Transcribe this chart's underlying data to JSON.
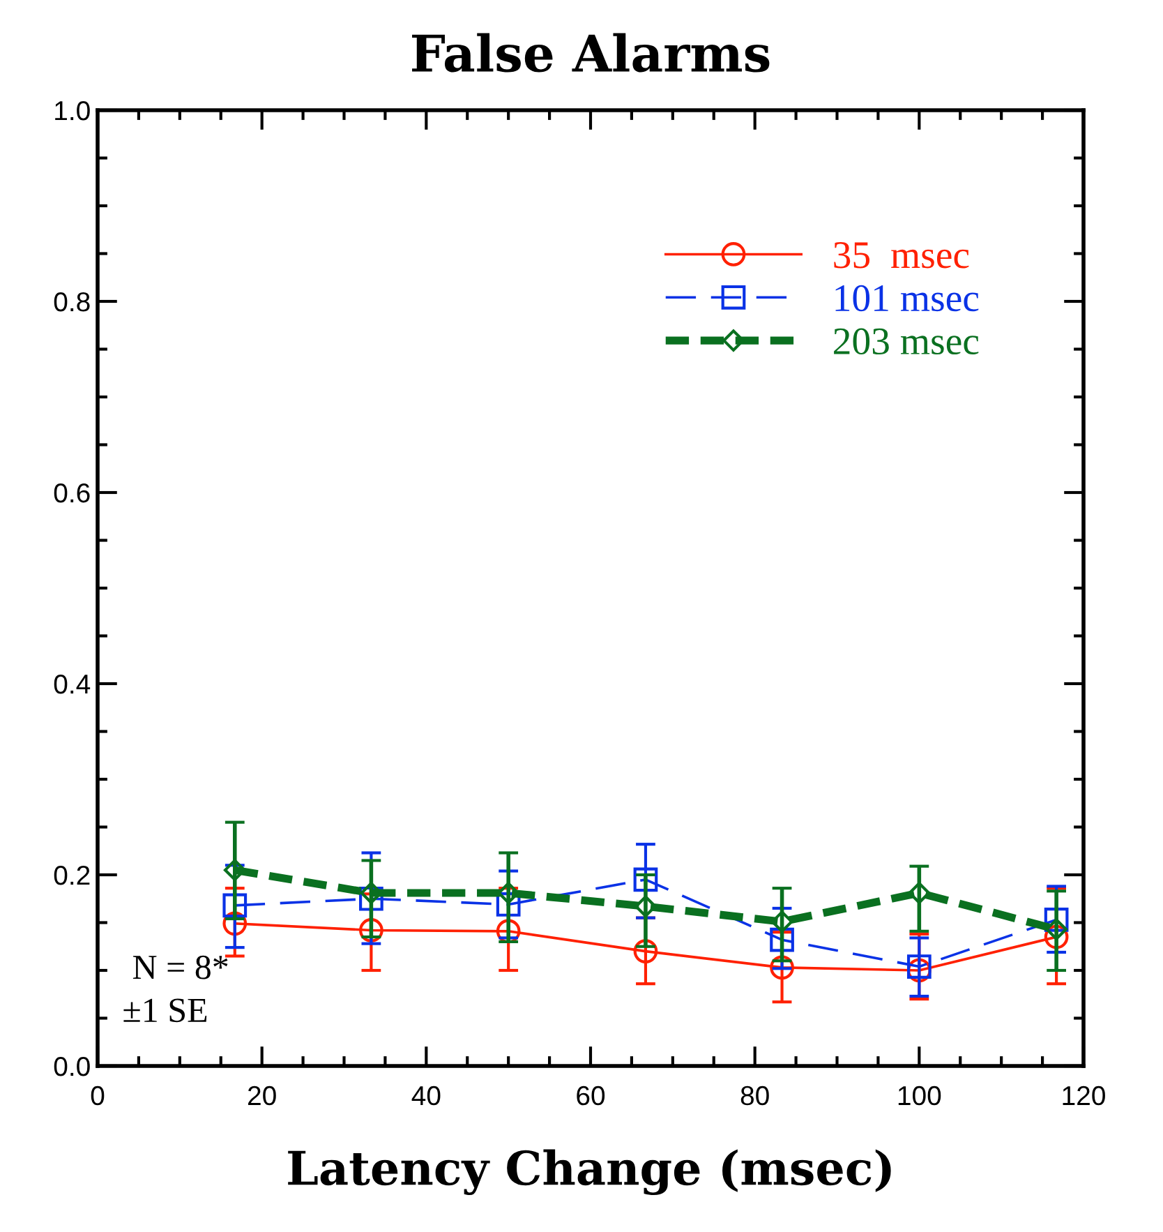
{
  "chart_data": {
    "type": "line",
    "title": "False Alarms",
    "xlabel": "Latency Change (msec)",
    "x": [
      16.7,
      33.3,
      50,
      66.7,
      83.3,
      100,
      116.7
    ],
    "xlim": [
      0,
      120
    ],
    "xticks": [
      0,
      20,
      40,
      60,
      80,
      100,
      120
    ],
    "ylim": [
      0,
      1
    ],
    "yticks": [
      {
        "value": 0,
        "label": "0.0"
      },
      0.2,
      0.4,
      0.6,
      0.8,
      {
        "value": 1,
        "label": "1.0"
      }
    ],
    "grid": false,
    "legend": "top right",
    "series": [
      {
        "name": "35  msec",
        "color": "#ff2000",
        "marker": "circle",
        "line_style": "solid",
        "values": [
          0.149,
          0.142,
          0.141,
          0.12,
          0.103,
          0.1,
          0.135
        ],
        "errors": [
          [
            0.115,
            0.186
          ],
          [
            0.1,
            0.18
          ],
          [
            0.1,
            0.186
          ],
          [
            0.086,
            0.155
          ],
          [
            0.067,
            0.14
          ],
          [
            0.07,
            0.138
          ],
          [
            0.086,
            0.186
          ]
        ]
      },
      {
        "name": "101 msec",
        "color": "#0a32e6",
        "marker": "square",
        "line_style": "dashed",
        "values": [
          0.168,
          0.175,
          0.169,
          0.195,
          0.132,
          0.104,
          0.153
        ],
        "errors": [
          [
            0.124,
            0.21
          ],
          [
            0.128,
            0.223
          ],
          [
            0.134,
            0.204
          ],
          [
            0.155,
            0.232
          ],
          [
            0.102,
            0.165
          ],
          [
            0.073,
            0.134
          ],
          [
            0.119,
            0.188
          ]
        ]
      },
      {
        "name": "203 msec",
        "color": "#0a7020",
        "marker": "diamond",
        "line_style": "dashed",
        "values": [
          0.205,
          0.181,
          0.181,
          0.167,
          0.151,
          0.181,
          0.143
        ],
        "errors": [
          [
            0.154,
            0.255
          ],
          [
            0.135,
            0.215
          ],
          [
            0.13,
            0.223
          ],
          [
            0.125,
            0.2
          ],
          [
            0.11,
            0.186
          ],
          [
            0.141,
            0.209
          ],
          [
            0.1,
            0.183
          ]
        ]
      }
    ],
    "annotations": [
      "N = 8*",
      "±1 SE"
    ]
  }
}
